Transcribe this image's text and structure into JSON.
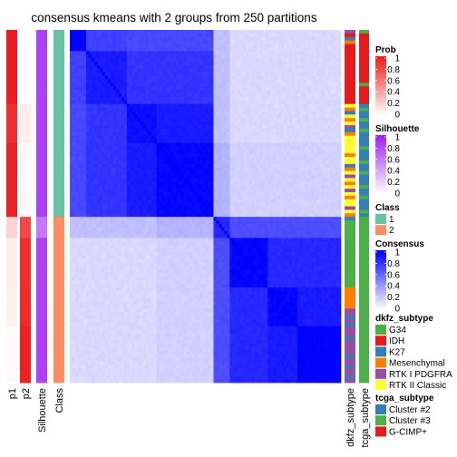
{
  "chart_data": {
    "type": "heatmap",
    "title": "consensus kmeans with 2 groups from 250 partitions",
    "n_samples": 100,
    "column_annotations": [
      "p1",
      "p2",
      "Silhouette",
      "Class"
    ],
    "row_annotations": [
      "dkfz_subtype",
      "tcga_subtype"
    ],
    "class_boundary_index": 53,
    "sample_blocks": [
      {
        "count": 6,
        "p1": 1.0,
        "p2": 0.0,
        "silhouette": 0.85,
        "class": "1",
        "consensus_label": "1"
      },
      {
        "count": 15,
        "p1": 1.0,
        "p2": 0.0,
        "silhouette": 0.85,
        "class": "1",
        "consensus_label": "1"
      },
      {
        "count": 11,
        "p1": 0.92,
        "p2": 0.08,
        "silhouette": 0.85,
        "class": "1",
        "consensus_label": "1"
      },
      {
        "count": 21,
        "p1": 0.98,
        "p2": 0.02,
        "silhouette": 0.85,
        "class": "1",
        "consensus_label": "1"
      },
      {
        "count": 6,
        "p1": 0.2,
        "p2": 0.8,
        "silhouette": 0.6,
        "class": "2",
        "consensus_label": "2"
      },
      {
        "count": 14,
        "p1": 0.08,
        "p2": 0.92,
        "silhouette": 0.85,
        "class": "2",
        "consensus_label": "2"
      },
      {
        "count": 11,
        "p1": 0.06,
        "p2": 0.94,
        "silhouette": 0.85,
        "class": "2",
        "consensus_label": "2"
      },
      {
        "count": 16,
        "p1": 0.02,
        "p2": 0.98,
        "silhouette": 0.85,
        "class": "2",
        "consensus_label": "2"
      }
    ],
    "consensus_block_matrix": [
      [
        1.0,
        0.75,
        0.72,
        0.72,
        0.25,
        0.15,
        0.15,
        0.15
      ],
      [
        0.75,
        0.9,
        0.8,
        0.8,
        0.25,
        0.15,
        0.15,
        0.15
      ],
      [
        0.72,
        0.8,
        0.95,
        0.9,
        0.25,
        0.15,
        0.15,
        0.15
      ],
      [
        0.72,
        0.8,
        0.9,
        0.98,
        0.3,
        0.18,
        0.18,
        0.18
      ],
      [
        0.25,
        0.25,
        0.25,
        0.3,
        0.85,
        0.7,
        0.7,
        0.7
      ],
      [
        0.15,
        0.15,
        0.15,
        0.18,
        0.7,
        0.98,
        0.85,
        0.85
      ],
      [
        0.15,
        0.15,
        0.15,
        0.18,
        0.7,
        0.85,
        0.98,
        0.9
      ],
      [
        0.15,
        0.15,
        0.15,
        0.18,
        0.7,
        0.85,
        0.9,
        1.0
      ]
    ],
    "dkfz_subtype_pattern": [
      "RTK I PDGFRA",
      "IDH",
      "K27",
      "Mesenchymal",
      "IDH",
      "IDH",
      "IDH",
      "IDH",
      "IDH",
      "IDH",
      "IDH",
      "IDH",
      "IDH",
      "IDH",
      "IDH",
      "IDH",
      "IDH",
      "IDH",
      "IDH",
      "IDH",
      "IDH",
      "RTK II Classic",
      "Mesenchymal",
      "K27",
      "RTK II Classic",
      "Mesenchymal",
      "RTK II Classic",
      "RTK I PDGFRA",
      "K27",
      "Mesenchymal",
      "RTK II Classic",
      "RTK II Classic",
      "RTK II Classic",
      "RTK II Classic",
      "RTK II Classic",
      "Mesenchymal",
      "RTK II Classic",
      "RTK II Classic",
      "K27",
      "Mesenchymal",
      "RTK II Classic",
      "RTK I PDGFRA",
      "RTK II Classic",
      "Mesenchymal",
      "RTK II Classic",
      "RTK I PDGFRA",
      "RTK II Classic",
      "Mesenchymal",
      "RTK II Classic",
      "RTK II Classic",
      "RTK I PDGFRA",
      "RTK II Classic",
      "Mesenchymal",
      "K27",
      "G34",
      "G34",
      "G34",
      "G34",
      "G34",
      "G34",
      "G34",
      "G34",
      "G34",
      "G34",
      "G34",
      "G34",
      "G34",
      "G34",
      "G34",
      "G34",
      "G34",
      "G34",
      "G34",
      "Mesenchymal",
      "Mesenchymal",
      "Mesenchymal",
      "Mesenchymal",
      "Mesenchymal",
      "Mesenchymal",
      "RTK I PDGFRA",
      "RTK I PDGFRA",
      "K27",
      "RTK I PDGFRA",
      "K27",
      "RTK I PDGFRA",
      "RTK I PDGFRA",
      "RTK I PDGFRA",
      "K27",
      "RTK I PDGFRA",
      "RTK I PDGFRA",
      "RTK I PDGFRA",
      "RTK I PDGFRA",
      "K27",
      "RTK I PDGFRA",
      "RTK I PDGFRA",
      "K27",
      "RTK I PDGFRA",
      "RTK I PDGFRA",
      "K27",
      "RTK I PDGFRA"
    ],
    "tcga_subtype_pattern": [
      "Cluster #3",
      "G-CIMP+",
      "G-CIMP+",
      "G-CIMP+",
      "G-CIMP+",
      "G-CIMP+",
      "G-CIMP+",
      "G-CIMP+",
      "G-CIMP+",
      "G-CIMP+",
      "G-CIMP+",
      "G-CIMP+",
      "G-CIMP+",
      "G-CIMP+",
      "G-CIMP+",
      "Cluster #3",
      "G-CIMP+",
      "G-CIMP+",
      "G-CIMP+",
      "G-CIMP+",
      "G-CIMP+",
      "Cluster #2",
      "Cluster #3",
      "Cluster #2",
      "Cluster #2",
      "Cluster #3",
      "Cluster #2",
      "Cluster #2",
      "Cluster #3",
      "Cluster #2",
      "Cluster #2",
      "Cluster #2",
      "Cluster #2",
      "Cluster #3",
      "Cluster #2",
      "Cluster #2",
      "Cluster #2",
      "Cluster #3",
      "Cluster #2",
      "Cluster #2",
      "Cluster #3",
      "Cluster #2",
      "Cluster #2",
      "Cluster #2",
      "Cluster #3",
      "Cluster #2",
      "Cluster #2",
      "Cluster #3",
      "Cluster #2",
      "Cluster #2",
      "Cluster #2",
      "Cluster #3",
      "Cluster #2",
      "Cluster #3",
      "Cluster #3",
      "Cluster #3",
      "Cluster #3",
      "Cluster #3",
      "Cluster #3",
      "Cluster #3",
      "Cluster #3",
      "Cluster #3",
      "Cluster #3",
      "Cluster #3",
      "Cluster #3",
      "Cluster #3",
      "Cluster #3",
      "Cluster #3",
      "Cluster #3",
      "Cluster #3",
      "Cluster #3",
      "Cluster #3",
      "Cluster #3",
      "Cluster #3",
      "Cluster #3",
      "Cluster #3",
      "Cluster #3",
      "Cluster #3",
      "Cluster #3",
      "Cluster #3",
      "Cluster #3",
      "Cluster #3",
      "Cluster #3",
      "Cluster #3",
      "Cluster #3",
      "Cluster #3",
      "Cluster #3",
      "Cluster #3",
      "Cluster #3",
      "Cluster #3",
      "Cluster #3",
      "Cluster #3",
      "Cluster #3",
      "Cluster #3",
      "Cluster #3",
      "Cluster #3",
      "Cluster #3",
      "Cluster #3",
      "Cluster #3",
      "Cluster #3"
    ],
    "colors": {
      "prob_high": "#ee1c1c",
      "prob_low": "#ffffff",
      "silhouette_high": "#a020f0",
      "silhouette_low": "#ffffff",
      "consensus_high": "#0000ff",
      "consensus_low": "#ffffff",
      "class": {
        "1": "#66c2a5",
        "2": "#fc8d62"
      },
      "dkfz_subtype": {
        "G34": "#4daf4a",
        "IDH": "#e41a1c",
        "K27": "#377eb8",
        "Mesenchymal": "#ff7f00",
        "RTK I PDGFRA": "#984ea3",
        "RTK II Classic": "#ffff33"
      },
      "tcga_subtype": {
        "Cluster #2": "#377eb8",
        "Cluster #3": "#4daf4a",
        "G-CIMP+": "#e41a1c"
      }
    },
    "legends": [
      {
        "title": "Prob",
        "type": "continuous",
        "ticks": [
          "1",
          "0.8",
          "0.6",
          "0.4",
          "0.2",
          "0"
        ],
        "color_key": "prob"
      },
      {
        "title": "Silhouette",
        "type": "continuous",
        "ticks": [
          "1",
          "0.8",
          "0.6",
          "0.4",
          "0.2",
          "0"
        ],
        "color_key": "silhouette"
      },
      {
        "title": "Class",
        "type": "discrete",
        "items": [
          "1",
          "2"
        ],
        "color_key": "class"
      },
      {
        "title": "Consensus",
        "type": "continuous",
        "ticks": [
          "1",
          "0.8",
          "0.6",
          "0.4",
          "0.2",
          "0"
        ],
        "color_key": "consensus"
      },
      {
        "title": "dkfz_subtype",
        "type": "discrete",
        "items": [
          "G34",
          "IDH",
          "K27",
          "Mesenchymal",
          "RTK I PDGFRA",
          "RTK II Classic"
        ],
        "color_key": "dkfz_subtype"
      },
      {
        "title": "tcga_subtype",
        "type": "discrete",
        "items": [
          "Cluster #2",
          "Cluster #3",
          "G-CIMP+"
        ],
        "color_key": "tcga_subtype"
      }
    ]
  }
}
